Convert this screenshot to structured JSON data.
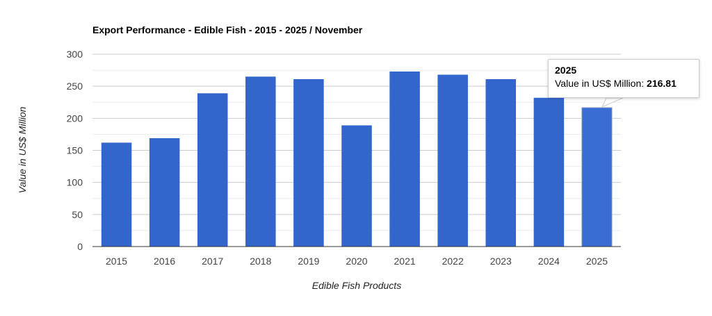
{
  "chart_data": {
    "type": "bar",
    "title": "Export Performance - Edible Fish - 2015 - 2025 / November",
    "xlabel": "Edible Fish Products",
    "ylabel": "Value in US$ Million",
    "categories": [
      "2015",
      "2016",
      "2017",
      "2018",
      "2019",
      "2020",
      "2021",
      "2022",
      "2023",
      "2024",
      "2025"
    ],
    "series": [
      {
        "values": [
          162,
          169,
          239,
          265,
          261,
          189,
          273,
          268,
          261,
          232,
          216.81
        ]
      }
    ],
    "ylim": [
      0,
      300
    ],
    "yticks": [
      "0",
      "50",
      "100",
      "150",
      "200",
      "250",
      "300"
    ],
    "grid": true,
    "legend": "none",
    "bar_color": "#3366cc",
    "highlighted_bar_color": "#3a6dd3"
  },
  "tooltip": {
    "title": "2025",
    "label": "Value in US$ Million: ",
    "value": "216.81"
  }
}
